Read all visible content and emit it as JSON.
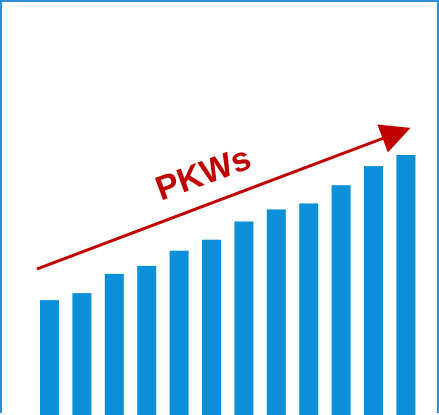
{
  "colors": {
    "bar": "#0a8fd8",
    "arrow": "#c00000",
    "frame": "#2b8fd6"
  },
  "chart_data": {
    "type": "bar",
    "title": "",
    "xlabel": "",
    "ylabel": "",
    "categories": [
      "",
      "",
      "",
      "",
      "",
      "",
      "",
      "",
      "",
      "",
      "",
      ""
    ],
    "values": [
      114,
      121,
      140,
      148,
      163,
      174,
      192,
      204,
      210,
      228,
      247,
      258
    ],
    "ylim": [
      0,
      260
    ],
    "grid": false,
    "legend": "none",
    "annotations": [
      {
        "text": "PKWs",
        "type": "trend-arrow"
      }
    ]
  }
}
